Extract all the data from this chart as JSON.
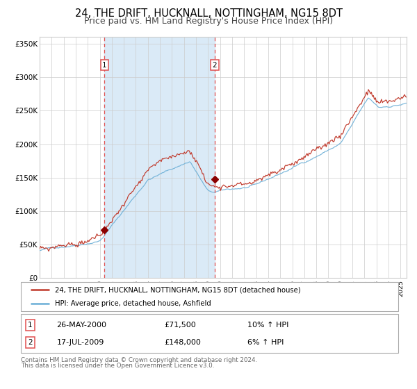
{
  "title": "24, THE DRIFT, HUCKNALL, NOTTINGHAM, NG15 8DT",
  "subtitle": "Price paid vs. HM Land Registry's House Price Index (HPI)",
  "legend_line1": "24, THE DRIFT, HUCKNALL, NOTTINGHAM, NG15 8DT (detached house)",
  "legend_line2": "HPI: Average price, detached house, Ashfield",
  "annotation1_date": "26-MAY-2000",
  "annotation1_price": "£71,500",
  "annotation1_hpi": "10% ↑ HPI",
  "annotation2_date": "17-JUL-2009",
  "annotation2_price": "£148,000",
  "annotation2_hpi": "6% ↑ HPI",
  "footer_line1": "Contains HM Land Registry data © Crown copyright and database right 2024.",
  "footer_line2": "This data is licensed under the Open Government Licence v3.0.",
  "sale1_year": 2000.4,
  "sale1_value": 71500,
  "sale2_year": 2009.54,
  "sale2_value": 148000,
  "hpi_color": "#6aaed6",
  "price_color": "#c0392b",
  "sale_marker_color": "#8b0000",
  "vline_color": "#e05050",
  "shade_color": "#daeaf7",
  "ylim": [
    0,
    360000
  ],
  "xlim_start": 1995.0,
  "xlim_end": 2025.5,
  "background_color": "#ffffff",
  "grid_color": "#cccccc",
  "title_fontsize": 10.5,
  "subtitle_fontsize": 9.0
}
